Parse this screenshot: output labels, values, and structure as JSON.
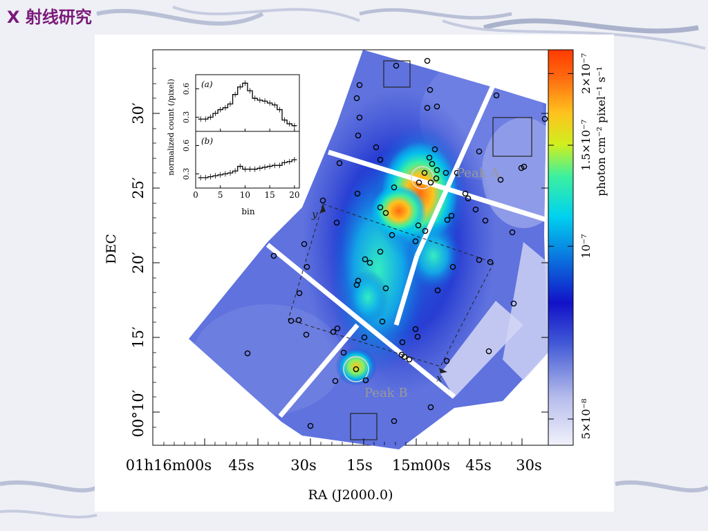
{
  "slide": {
    "title": "X 射线研究"
  },
  "chart_data": {
    "type": "heatmap",
    "title": "",
    "xlabel": "RA (J2000.0)",
    "ylabel": "DEC",
    "x_ticks": [
      {
        "label": "01h16m00s"
      },
      {
        "label": "45s"
      },
      {
        "label": "30s"
      },
      {
        "label": "15s"
      },
      {
        "label": "15m00s"
      },
      {
        "label": "45s"
      },
      {
        "label": "30s"
      }
    ],
    "y_ticks": [
      {
        "label": "00°10′"
      },
      {
        "label": "15′"
      },
      {
        "label": "20′"
      },
      {
        "label": "25′"
      },
      {
        "label": "30′"
      }
    ],
    "colorbar": {
      "label": "photon cm⁻² pixel⁻¹ s⁻¹",
      "scale": "log",
      "range": [
        4.5e-08,
        2.2e-07
      ],
      "ticks": [
        {
          "label": "5×10⁻⁸",
          "value": 5e-08
        },
        {
          "label": "10⁻⁷",
          "value": 1e-07
        },
        {
          "label": "1.5×10⁻⁷",
          "value": 1.5e-07
        },
        {
          "label": "2×10⁻⁷",
          "value": 2e-07
        }
      ]
    },
    "annotations": [
      {
        "label": "Peak A"
      },
      {
        "label": "Peak B"
      },
      {
        "label": "x"
      },
      {
        "label": "y"
      }
    ],
    "inset": {
      "ylabel": "normalized count (/pixel)",
      "xlabel": "bin",
      "xlim": [
        0,
        21
      ],
      "x_ticks": [
        0,
        5,
        10,
        15,
        20
      ],
      "panels": [
        {
          "tag": "(a)",
          "ylim": [
            0.15,
            0.75
          ],
          "y_ticks": [
            0.3,
            0.6
          ],
          "x": [
            1,
            2,
            3,
            4,
            5,
            6,
            7,
            8,
            9,
            10,
            11,
            12,
            13,
            14,
            15,
            16,
            17,
            18,
            19,
            20
          ],
          "values": [
            0.28,
            0.28,
            0.3,
            0.34,
            0.38,
            0.4,
            0.44,
            0.54,
            0.62,
            0.66,
            0.58,
            0.5,
            0.48,
            0.47,
            0.45,
            0.43,
            0.38,
            0.27,
            0.23,
            0.21
          ]
        },
        {
          "tag": "(b)",
          "ylim": [
            0.15,
            0.75
          ],
          "y_ticks": [
            0.3,
            0.6
          ],
          "x": [
            1,
            2,
            3,
            4,
            5,
            6,
            7,
            8,
            9,
            10,
            11,
            12,
            13,
            14,
            15,
            16,
            17,
            18,
            19,
            20
          ],
          "values": [
            0.26,
            0.26,
            0.27,
            0.28,
            0.29,
            0.3,
            0.31,
            0.33,
            0.38,
            0.35,
            0.35,
            0.35,
            0.36,
            0.37,
            0.38,
            0.39,
            0.39,
            0.42,
            0.43,
            0.45
          ]
        }
      ]
    }
  }
}
